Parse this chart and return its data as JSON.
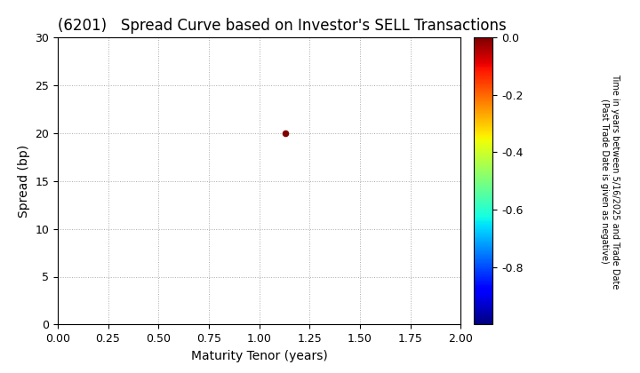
{
  "title": "(6201)   Spread Curve based on Investor's SELL Transactions",
  "xlabel": "Maturity Tenor (years)",
  "ylabel": "Spread (bp)",
  "colorbar_label": "Time in years between 5/16/2025 and Trade Date\n(Past Trade Date is given as negative)",
  "xlim": [
    0.0,
    2.0
  ],
  "ylim": [
    0,
    30
  ],
  "xticks": [
    0.0,
    0.25,
    0.5,
    0.75,
    1.0,
    1.25,
    1.5,
    1.75,
    2.0
  ],
  "yticks": [
    0,
    5,
    10,
    15,
    20,
    25,
    30
  ],
  "scatter_x": [
    1.13
  ],
  "scatter_y": [
    20.0
  ],
  "scatter_color_val": [
    0.0
  ],
  "cmap_min": -1.0,
  "cmap_max": 0.0,
  "cmap_ticks": [
    0.0,
    -0.2,
    -0.4,
    -0.6,
    -0.8
  ],
  "bg_color": "#ffffff",
  "grid_color": "#aaaaaa",
  "title_fontsize": 12,
  "label_fontsize": 10,
  "tick_fontsize": 9,
  "colorbar_tick_fontsize": 9,
  "colorbar_label_fontsize": 7
}
